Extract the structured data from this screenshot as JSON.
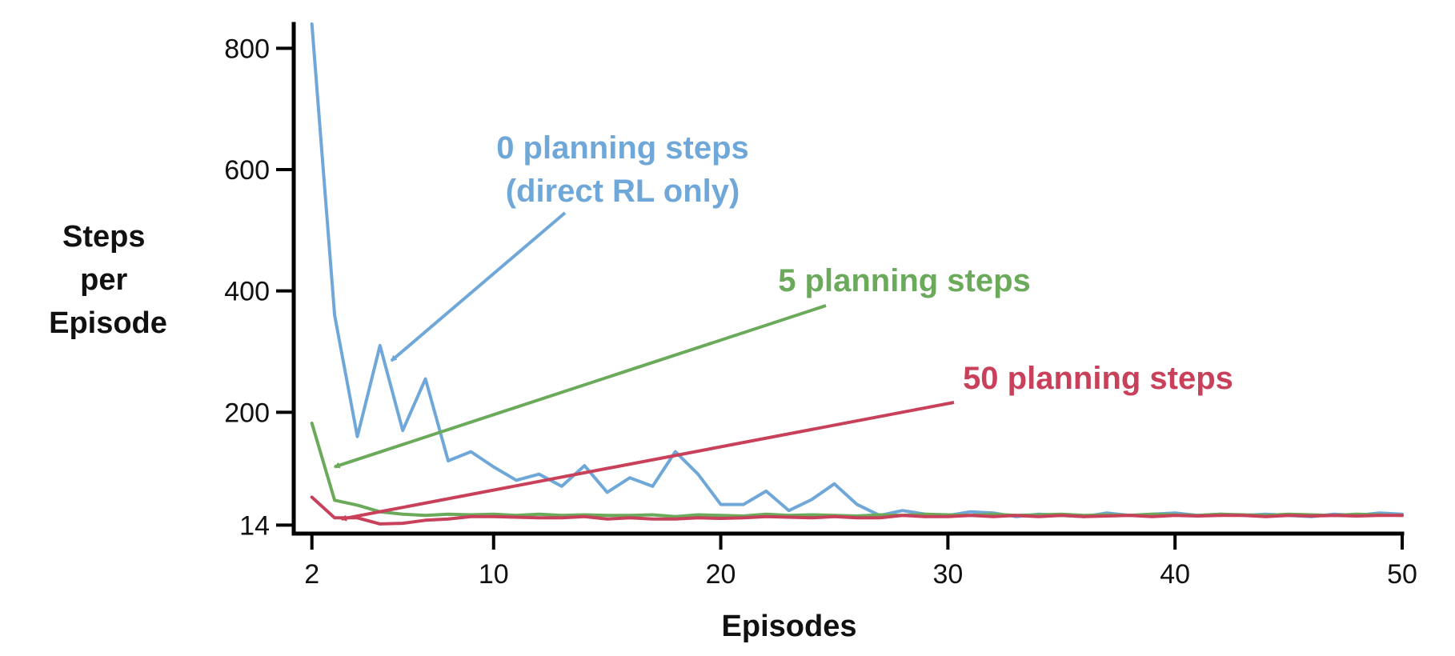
{
  "chart_data": {
    "type": "line",
    "xlabel": "Episodes",
    "ylabel": [
      "Steps",
      "per",
      "Episode"
    ],
    "xlim": [
      1.2,
      50
    ],
    "ylim": [
      0,
      840
    ],
    "x_ticks": [
      2,
      10,
      20,
      30,
      40,
      50
    ],
    "y_ticks": [
      14,
      200,
      400,
      600,
      800
    ],
    "colors": {
      "0": "#6fa8d8",
      "5": "#6aaa5a",
      "50": "#c8405a"
    },
    "series": [
      {
        "key": "0",
        "x": [
          2,
          3,
          4,
          5,
          6,
          7,
          8,
          9,
          10,
          11,
          12,
          13,
          14,
          15,
          16,
          17,
          18,
          19,
          20,
          21,
          22,
          23,
          24,
          25,
          26,
          27,
          28,
          29,
          30,
          31,
          32,
          33,
          34,
          35,
          36,
          37,
          38,
          39,
          40,
          41,
          42,
          43,
          44,
          45,
          46,
          47,
          48,
          49,
          50
        ],
        "values": [
          840,
          360,
          160,
          310,
          170,
          255,
          120,
          135,
          110,
          88,
          98,
          78,
          112,
          68,
          92,
          78,
          135,
          98,
          48,
          48,
          70,
          38,
          56,
          82,
          48,
          30,
          38,
          32,
          30,
          36,
          34,
          28,
          32,
          30,
          28,
          34,
          30,
          32,
          34,
          30,
          32,
          30,
          32,
          30,
          28,
          32,
          30,
          34,
          32
        ]
      },
      {
        "key": "5",
        "x": [
          2,
          3,
          4,
          5,
          6,
          7,
          8,
          9,
          10,
          11,
          12,
          13,
          14,
          15,
          16,
          17,
          18,
          19,
          20,
          21,
          22,
          23,
          24,
          25,
          26,
          27,
          28,
          29,
          30,
          31,
          32,
          33,
          34,
          35,
          36,
          37,
          38,
          39,
          40,
          41,
          42,
          43,
          44,
          45,
          46,
          47,
          48,
          49,
          50
        ],
        "values": [
          182,
          55,
          47,
          36,
          32,
          30,
          32,
          31,
          32,
          30,
          32,
          30,
          31,
          30,
          30,
          31,
          28,
          31,
          30,
          29,
          32,
          30,
          31,
          30,
          29,
          31,
          30,
          32,
          31,
          30,
          32,
          30,
          31,
          32,
          30,
          31,
          30,
          32,
          31,
          30,
          32,
          31,
          30,
          32,
          31,
          30,
          32,
          31,
          30
        ]
      },
      {
        "key": "50",
        "x": [
          2,
          3,
          4,
          5,
          6,
          7,
          8,
          9,
          10,
          11,
          12,
          13,
          14,
          15,
          16,
          17,
          18,
          19,
          20,
          21,
          22,
          23,
          24,
          25,
          26,
          27,
          28,
          29,
          30,
          31,
          32,
          33,
          34,
          35,
          36,
          37,
          38,
          39,
          40,
          41,
          42,
          43,
          44,
          45,
          46,
          47,
          48,
          49,
          50
        ],
        "values": [
          60,
          26,
          26,
          16,
          17,
          22,
          24,
          28,
          28,
          27,
          26,
          26,
          28,
          24,
          26,
          24,
          24,
          26,
          25,
          26,
          28,
          27,
          26,
          28,
          26,
          26,
          30,
          28,
          28,
          30,
          28,
          30,
          28,
          30,
          28,
          29,
          30,
          28,
          30,
          29,
          30,
          30,
          28,
          30,
          29,
          30,
          29,
          30,
          30
        ]
      }
    ],
    "annotations": [
      {
        "key": "0",
        "lines": [
          "0 planning steps",
          "(direct RL only)"
        ],
        "color": "#6fa8d8",
        "arrow_to": {
          "x": 5.5,
          "y": 285
        }
      },
      {
        "key": "5",
        "lines": [
          "5 planning steps"
        ],
        "color": "#6aaa5a",
        "arrow_to": {
          "x": 3.0,
          "y": 110
        }
      },
      {
        "key": "50",
        "lines": [
          "50 planning steps"
        ],
        "color": "#c8405a",
        "arrow_to": {
          "x": 3.3,
          "y": 24
        }
      }
    ]
  }
}
